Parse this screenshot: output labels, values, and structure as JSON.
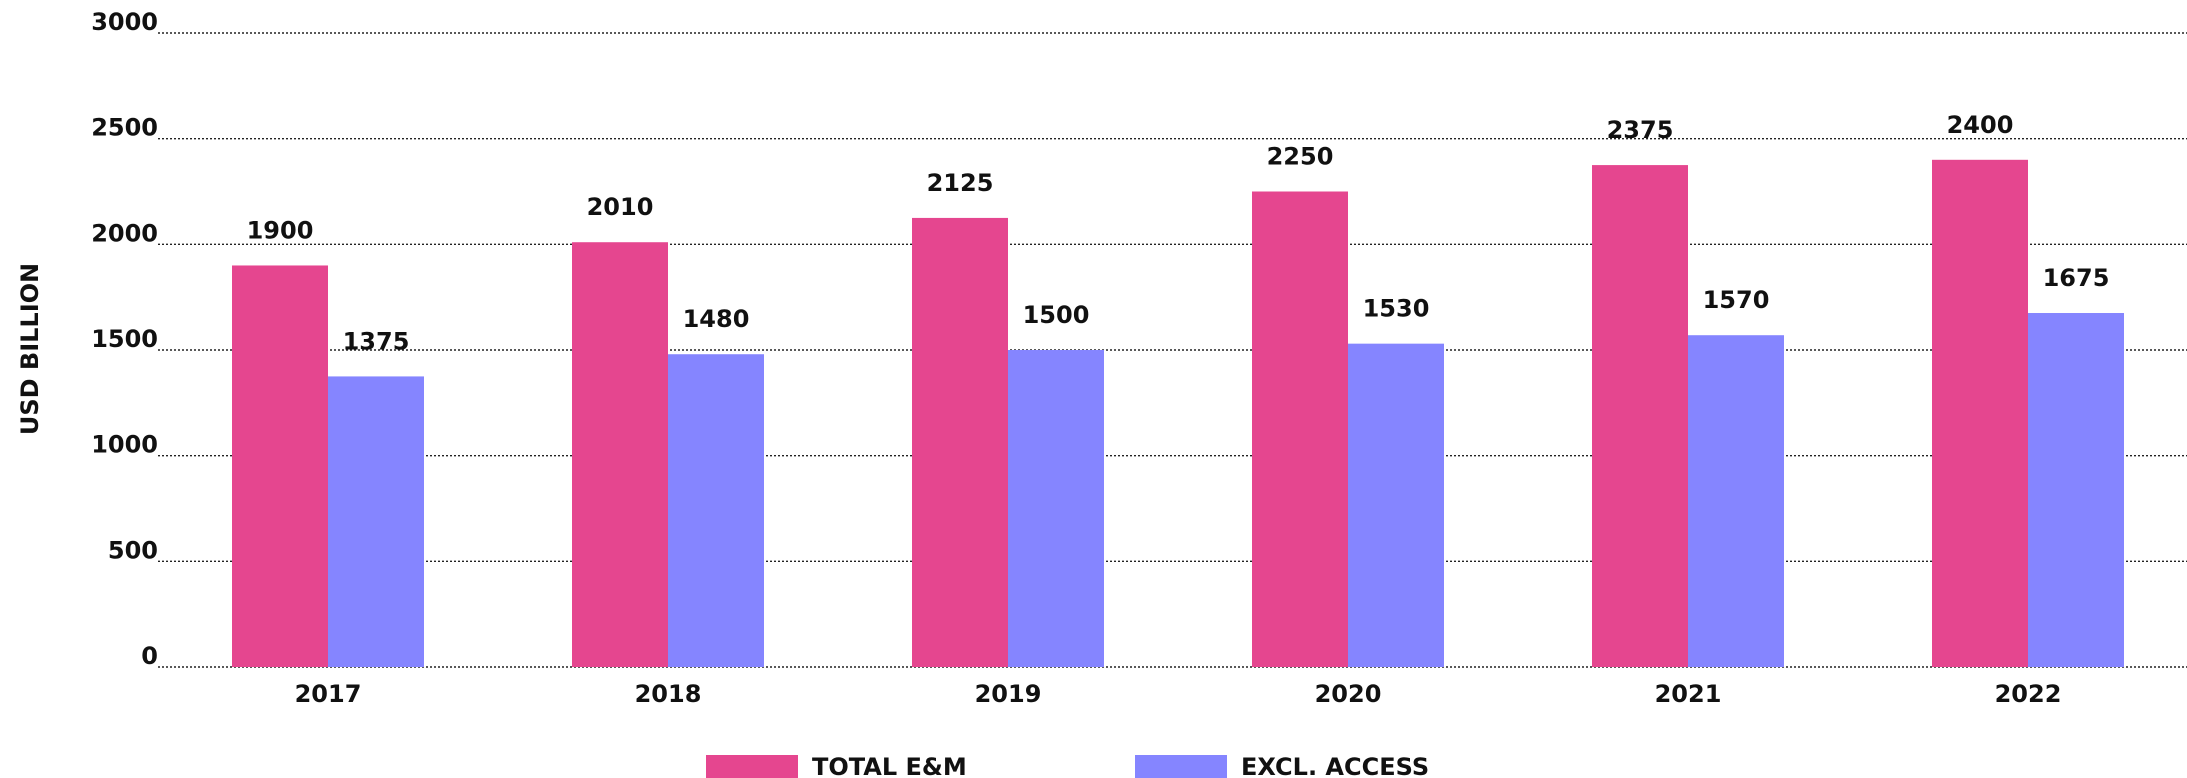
{
  "chart_data": {
    "type": "bar",
    "y_label": "USD BILLION",
    "categories": [
      "2017",
      "2018",
      "2019",
      "2020",
      "2021",
      "2022"
    ],
    "series": [
      {
        "name": "TOTAL E&M",
        "color": "#e5468f",
        "values": [
          1900,
          2010,
          2125,
          2250,
          2375,
          2400
        ]
      },
      {
        "name": "EXCL. ACCESS",
        "color": "#8585ff",
        "values": [
          1375,
          1480,
          1500,
          1530,
          1570,
          1675
        ]
      }
    ],
    "ylim": [
      0,
      3000
    ],
    "yticks": [
      0,
      500,
      1000,
      1500,
      2000,
      2500,
      3000
    ],
    "grid": true,
    "legend": "bottom"
  }
}
